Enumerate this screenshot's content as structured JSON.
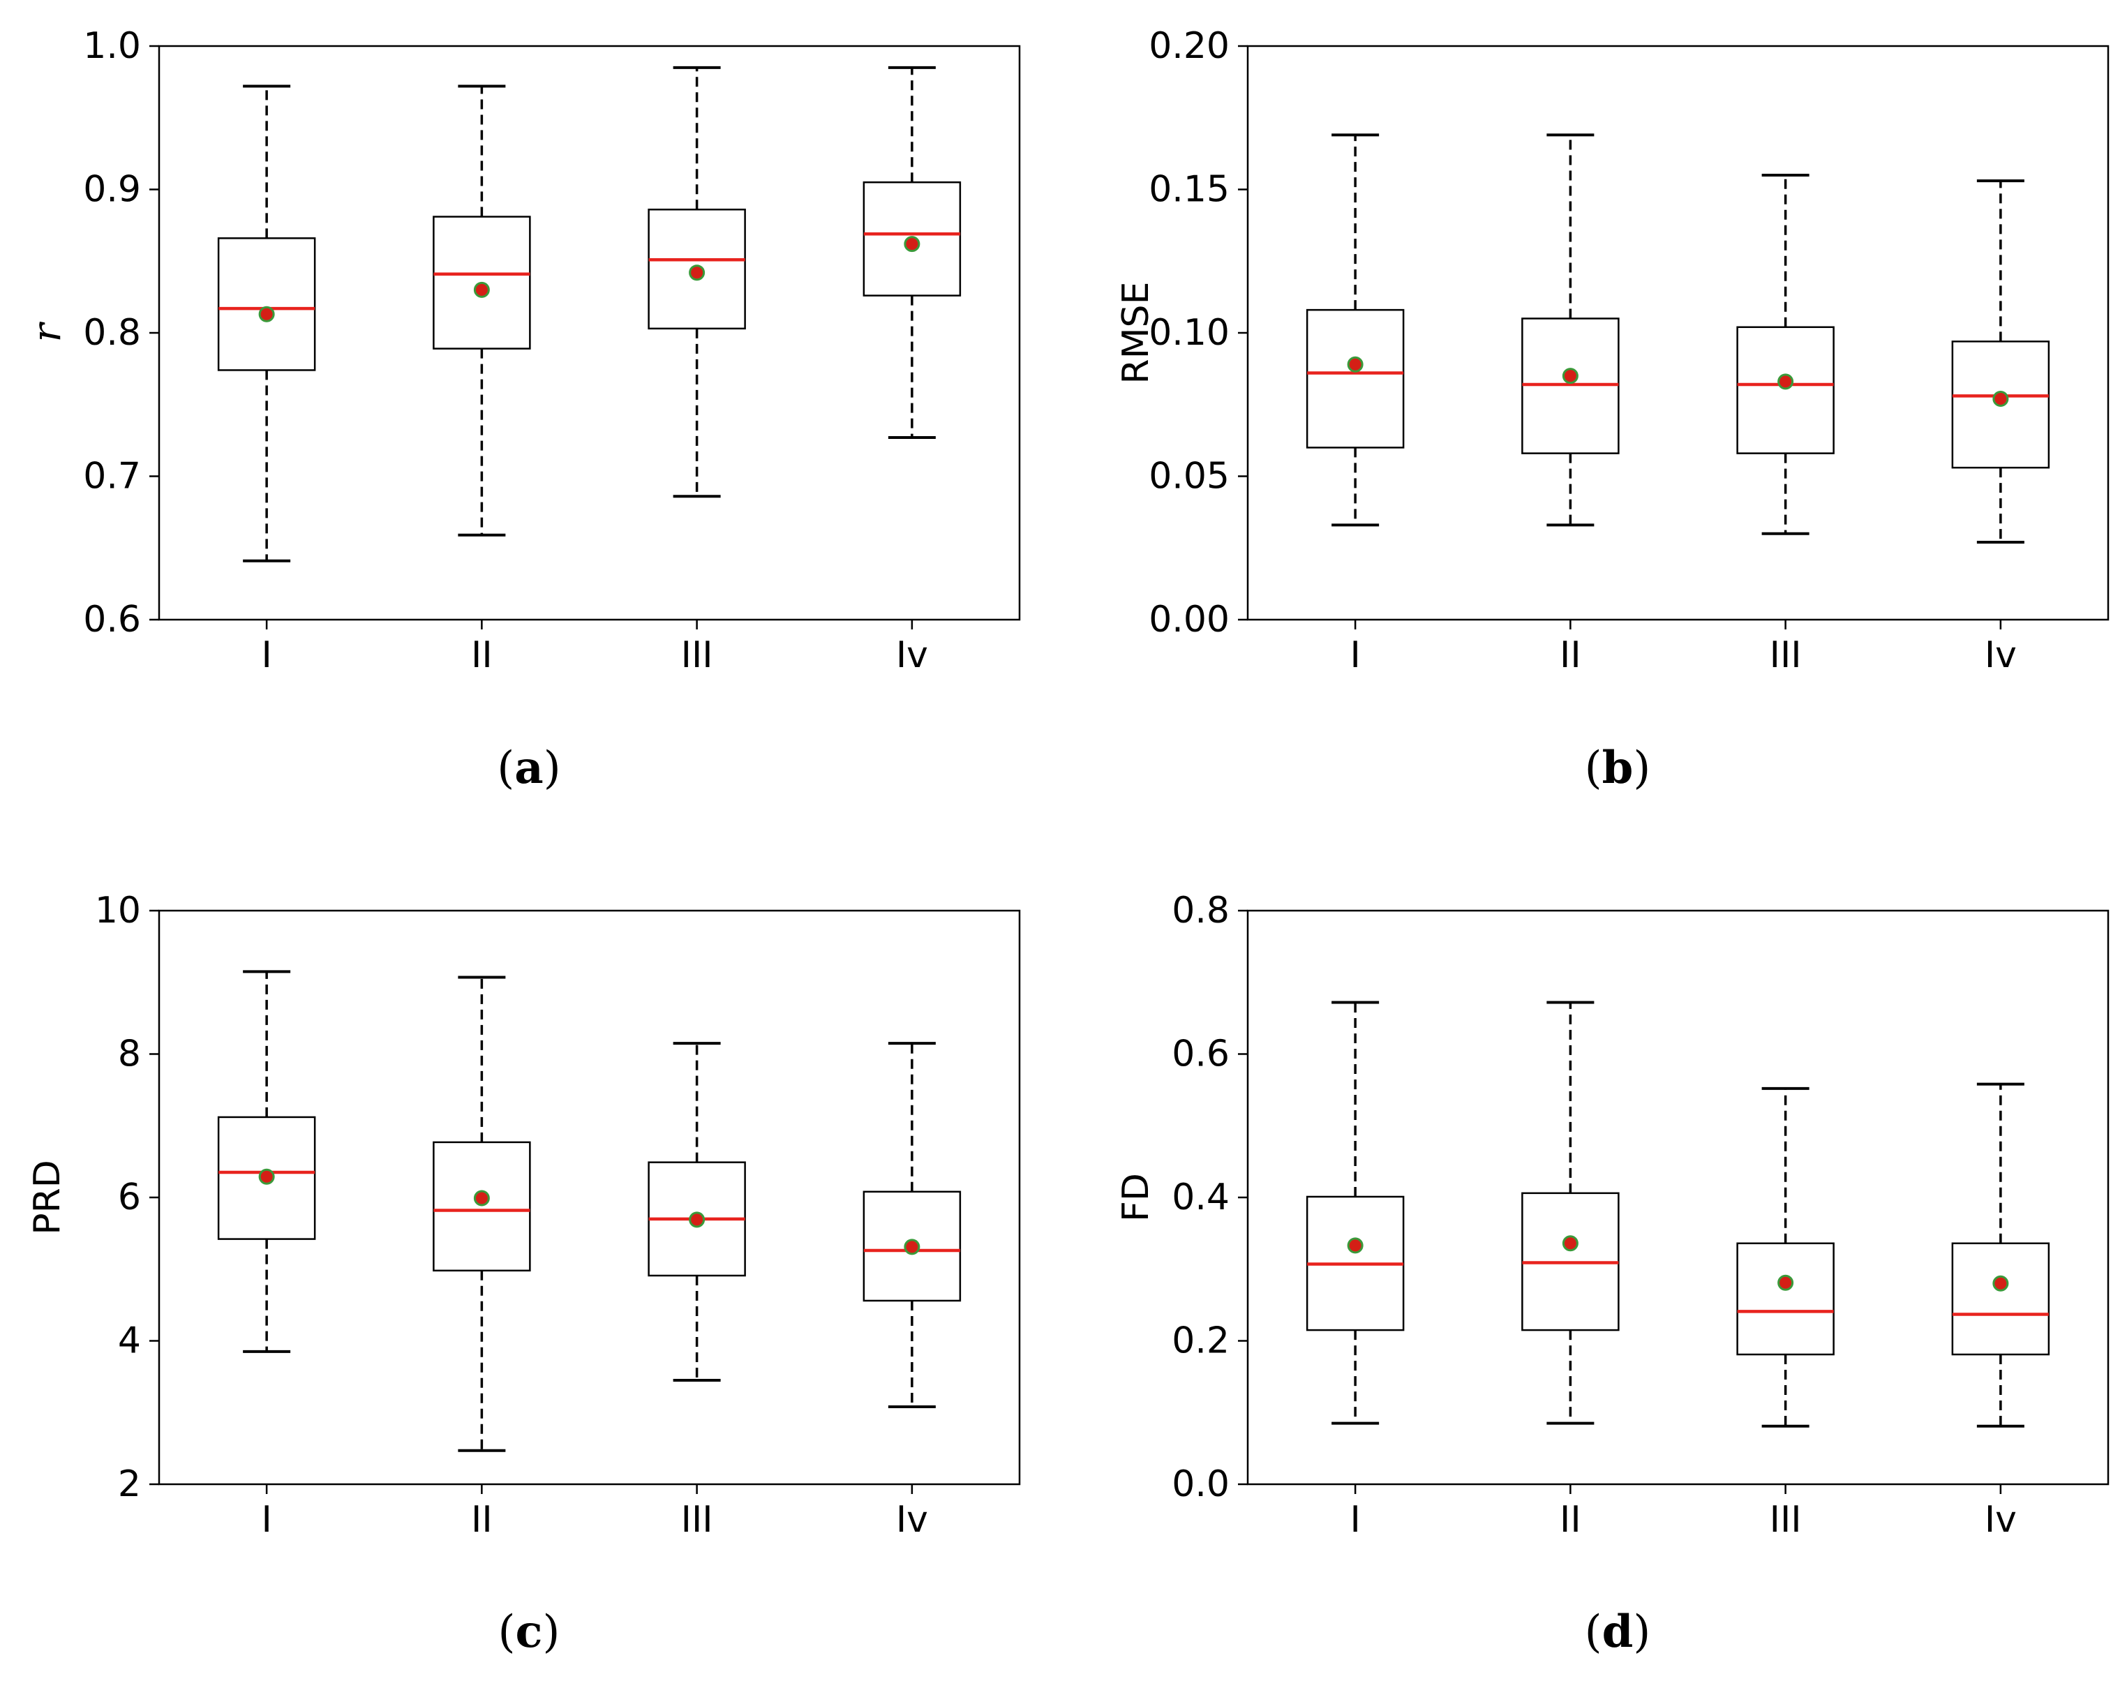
{
  "colors": {
    "median": "#e8231e",
    "mean_fill": "#d41f16",
    "mean_edge": "#3a9a3a",
    "box": "#000000"
  },
  "chart_data": [
    {
      "type": "box",
      "panel": "a",
      "caption_letter": "a",
      "ylabel": "r",
      "ylabel_italic": true,
      "ylim": [
        0.6,
        1.0
      ],
      "yticks": [
        0.6,
        0.7,
        0.8,
        0.9,
        1.0
      ],
      "ytick_labels": [
        "0.6",
        "0.7",
        "0.8",
        "0.9",
        "1.0"
      ],
      "categories": [
        "I",
        "II",
        "III",
        "Iv"
      ],
      "boxes": [
        {
          "whisker_low": 0.641,
          "q1": 0.774,
          "median": 0.817,
          "q3": 0.866,
          "whisker_high": 0.972,
          "mean": 0.813
        },
        {
          "whisker_low": 0.659,
          "q1": 0.789,
          "median": 0.841,
          "q3": 0.881,
          "whisker_high": 0.972,
          "mean": 0.83
        },
        {
          "whisker_low": 0.686,
          "q1": 0.803,
          "median": 0.851,
          "q3": 0.886,
          "whisker_high": 0.985,
          "mean": 0.842
        },
        {
          "whisker_low": 0.727,
          "q1": 0.826,
          "median": 0.869,
          "q3": 0.905,
          "whisker_high": 0.985,
          "mean": 0.862
        }
      ]
    },
    {
      "type": "box",
      "panel": "b",
      "caption_letter": "b",
      "ylabel": "RMSE",
      "ylabel_italic": false,
      "ylim": [
        0.0,
        0.2
      ],
      "yticks": [
        0.0,
        0.05,
        0.1,
        0.15,
        0.2
      ],
      "ytick_labels": [
        "0.00",
        "0.05",
        "0.10",
        "0.15",
        "0.20"
      ],
      "categories": [
        "I",
        "II",
        "III",
        "Iv"
      ],
      "boxes": [
        {
          "whisker_low": 0.033,
          "q1": 0.06,
          "median": 0.086,
          "q3": 0.108,
          "whisker_high": 0.169,
          "mean": 0.089
        },
        {
          "whisker_low": 0.033,
          "q1": 0.058,
          "median": 0.082,
          "q3": 0.105,
          "whisker_high": 0.169,
          "mean": 0.085
        },
        {
          "whisker_low": 0.03,
          "q1": 0.058,
          "median": 0.082,
          "q3": 0.102,
          "whisker_high": 0.155,
          "mean": 0.083
        },
        {
          "whisker_low": 0.027,
          "q1": 0.053,
          "median": 0.078,
          "q3": 0.097,
          "whisker_high": 0.153,
          "mean": 0.077
        }
      ]
    },
    {
      "type": "box",
      "panel": "c",
      "caption_letter": "c",
      "ylabel": "PRD",
      "ylabel_italic": false,
      "ylim": [
        2,
        10
      ],
      "yticks": [
        2,
        4,
        6,
        8,
        10
      ],
      "ytick_labels": [
        "2",
        "4",
        "6",
        "8",
        "10"
      ],
      "categories": [
        "I",
        "II",
        "III",
        "Iv"
      ],
      "boxes": [
        {
          "whisker_low": 3.85,
          "q1": 5.42,
          "median": 6.35,
          "q3": 7.12,
          "whisker_high": 9.15,
          "mean": 6.29
        },
        {
          "whisker_low": 2.47,
          "q1": 4.98,
          "median": 5.82,
          "q3": 6.77,
          "whisker_high": 9.07,
          "mean": 5.99
        },
        {
          "whisker_low": 3.45,
          "q1": 4.91,
          "median": 5.7,
          "q3": 6.49,
          "whisker_high": 8.15,
          "mean": 5.69
        },
        {
          "whisker_low": 3.08,
          "q1": 4.56,
          "median": 5.26,
          "q3": 6.08,
          "whisker_high": 8.15,
          "mean": 5.31
        }
      ]
    },
    {
      "type": "box",
      "panel": "d",
      "caption_letter": "d",
      "ylabel": "FD",
      "ylabel_italic": false,
      "ylim": [
        0.0,
        0.8
      ],
      "yticks": [
        0.0,
        0.2,
        0.4,
        0.6,
        0.8
      ],
      "ytick_labels": [
        "0.0",
        "0.2",
        "0.4",
        "0.6",
        "0.8"
      ],
      "categories": [
        "I",
        "II",
        "III",
        "Iv"
      ],
      "boxes": [
        {
          "whisker_low": 0.085,
          "q1": 0.215,
          "median": 0.307,
          "q3": 0.401,
          "whisker_high": 0.672,
          "mean": 0.333
        },
        {
          "whisker_low": 0.085,
          "q1": 0.215,
          "median": 0.309,
          "q3": 0.406,
          "whisker_high": 0.672,
          "mean": 0.336
        },
        {
          "whisker_low": 0.081,
          "q1": 0.181,
          "median": 0.241,
          "q3": 0.336,
          "whisker_high": 0.552,
          "mean": 0.281
        },
        {
          "whisker_low": 0.081,
          "q1": 0.181,
          "median": 0.237,
          "q3": 0.336,
          "whisker_high": 0.558,
          "mean": 0.28
        }
      ]
    }
  ]
}
